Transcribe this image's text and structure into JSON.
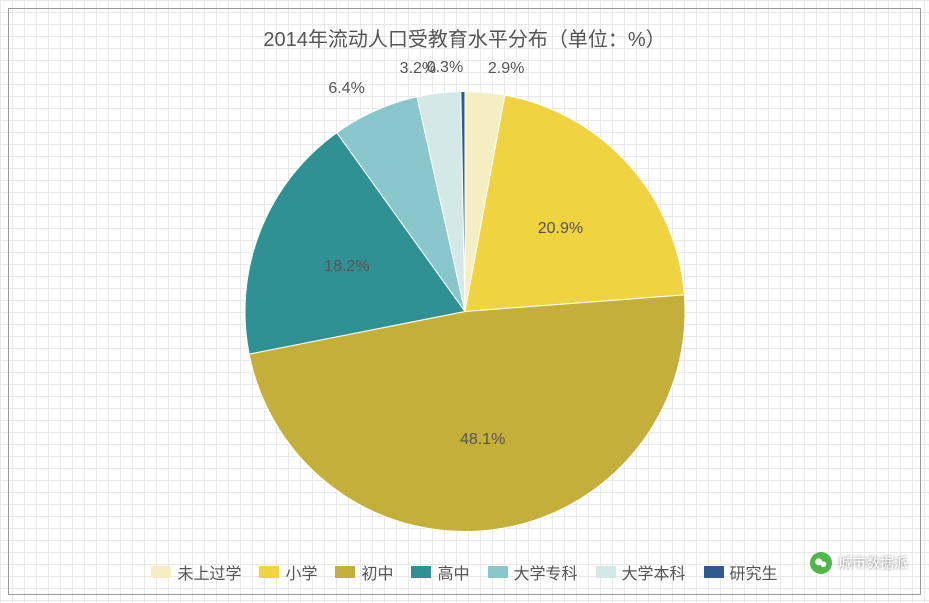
{
  "chart": {
    "type": "pie",
    "title": "2014年流动人口受教育水平分布（单位：%）",
    "title_fontsize": 20,
    "title_color": "#555555",
    "background_color": "#ffffff",
    "grid_color": "#e8e8e8",
    "border_color": "#999999",
    "radius": 220,
    "start_angle_deg": -90,
    "label_fontsize": 16,
    "label_color": "#555555",
    "slices": [
      {
        "label": "未上过学",
        "value": 2.9,
        "color": "#f6eec3",
        "display": "2.9%"
      },
      {
        "label": "小学",
        "value": 20.9,
        "color": "#f0d341",
        "display": "20.9%"
      },
      {
        "label": "初中",
        "value": 48.1,
        "color": "#c3af3a",
        "display": "48.1%"
      },
      {
        "label": "高中",
        "value": 18.2,
        "color": "#2f9193",
        "display": "18.2%"
      },
      {
        "label": "大学专科",
        "value": 6.4,
        "color": "#8ac7cd",
        "display": "6.4%"
      },
      {
        "label": "大学本科",
        "value": 3.2,
        "color": "#d3e8e7",
        "display": "3.2%"
      },
      {
        "label": "研究生",
        "value": 0.3,
        "color": "#2f5a8f",
        "display": "0.3%"
      }
    ],
    "legend_fontsize": 16,
    "legend_swatch": {
      "width": 20,
      "height": 12
    }
  },
  "watermark": {
    "text": "城市数据派",
    "logo_color": "#3cb034"
  }
}
